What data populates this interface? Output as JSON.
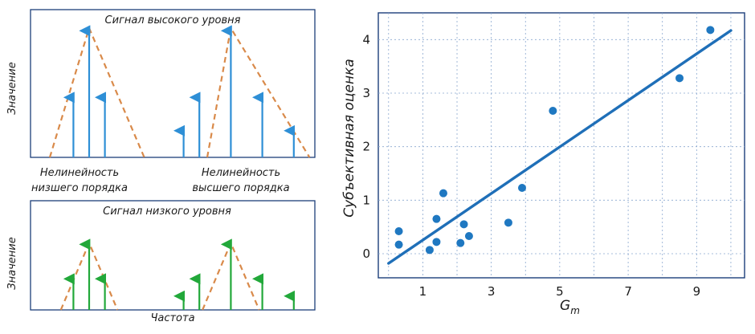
{
  "colors": {
    "frame": "#1c3f7a",
    "grid": "#8aa7cf",
    "blue_arrow": "#2e8fd6",
    "green_arrow": "#22a83a",
    "envelope": "#d98a4a",
    "scatter_point": "#1f78c1",
    "fit_line": "#1f6fb8",
    "text": "#1a1a1a"
  },
  "chart_data": [
    {
      "type": "spectrum",
      "title": "Сигнал высокого уровня",
      "ylabel": "Значение",
      "arrow_color": "blue",
      "x": [
        2,
        3,
        4,
        9,
        10,
        12,
        14,
        16
      ],
      "values": [
        0.45,
        0.95,
        0.45,
        0.2,
        0.45,
        0.95,
        0.45,
        0.2
      ],
      "envelope": [
        [
          0.5,
          0
        ],
        [
          3,
          0.97
        ],
        [
          6.5,
          0
        ],
        [
          10.5,
          0
        ],
        [
          12,
          0.97
        ],
        [
          17,
          0
        ]
      ],
      "annotations": [
        {
          "x": 3.8,
          "lines": [
            "Нелинейность",
            "низшего порядка"
          ]
        },
        {
          "x": 12.8,
          "lines": [
            "Нелинейность",
            "высшего порядка"
          ]
        }
      ]
    },
    {
      "type": "spectrum",
      "title": "Сигнал низкого уровня",
      "ylabel": "Значение",
      "xlabel": "Частота",
      "arrow_color": "green",
      "x": [
        2,
        3,
        4,
        9,
        10,
        12,
        14,
        16
      ],
      "values": [
        0.45,
        0.95,
        0.45,
        0.2,
        0.45,
        0.95,
        0.45,
        0.2
      ],
      "envelope": [
        [
          1.2,
          0
        ],
        [
          3,
          0.97
        ],
        [
          4.8,
          0
        ],
        [
          10.2,
          0
        ],
        [
          12,
          0.97
        ],
        [
          13.8,
          0
        ]
      ]
    },
    {
      "type": "scatter",
      "xlabel": "G",
      "xlabel_sub": "m",
      "ylabel": "Субъективная оценка",
      "xlim": [
        -0.3,
        10.4
      ],
      "ylim": [
        -0.45,
        4.5
      ],
      "xticks": [
        1,
        3,
        5,
        7,
        9
      ],
      "yticks": [
        0,
        1,
        2,
        3,
        4
      ],
      "grid": true,
      "points": [
        [
          0.3,
          0.42
        ],
        [
          0.3,
          0.17
        ],
        [
          1.2,
          0.07
        ],
        [
          1.4,
          0.65
        ],
        [
          1.4,
          0.22
        ],
        [
          1.6,
          1.13
        ],
        [
          2.1,
          0.2
        ],
        [
          2.2,
          0.55
        ],
        [
          2.35,
          0.33
        ],
        [
          3.5,
          0.58
        ],
        [
          3.9,
          1.23
        ],
        [
          4.8,
          2.67
        ],
        [
          8.5,
          3.28
        ],
        [
          9.4,
          4.18
        ]
      ],
      "fit_line": [
        [
          0.0,
          -0.18
        ],
        [
          10.0,
          4.17
        ]
      ]
    }
  ]
}
